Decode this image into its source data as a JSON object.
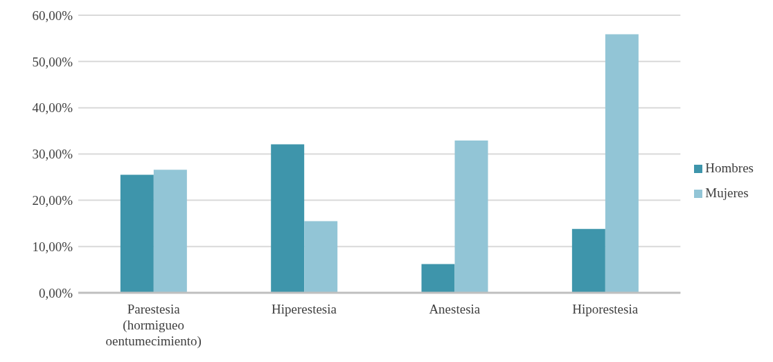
{
  "chart_data": {
    "type": "bar",
    "categories": [
      "Parestesia (hormigueo oentumecimiento)",
      "Hiperestesia",
      "Anestesia",
      "Hiporestesia"
    ],
    "series": [
      {
        "name": "Hombres",
        "color": "#3e95ab",
        "values": [
          25.5,
          32.1,
          6.2,
          13.8
        ]
      },
      {
        "name": "Mujeres",
        "color": "#92c5d6",
        "values": [
          26.6,
          15.5,
          32.9,
          55.9
        ]
      }
    ],
    "ylim": [
      0,
      60
    ],
    "yticks": [
      {
        "value": 0,
        "label": "0,00%"
      },
      {
        "value": 10,
        "label": "10,00%"
      },
      {
        "value": 20,
        "label": "20,00%"
      },
      {
        "value": 30,
        "label": "30,00%"
      },
      {
        "value": 40,
        "label": "40,00%"
      },
      {
        "value": 50,
        "label": "50,00%"
      },
      {
        "value": 60,
        "label": "60,00%"
      }
    ],
    "grid": "y",
    "legend": "right"
  }
}
